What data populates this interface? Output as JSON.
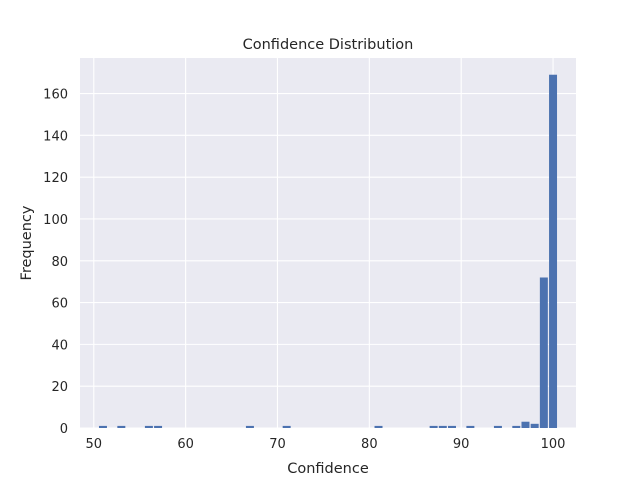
{
  "chart_data": {
    "type": "bar",
    "title": "Confidence Distribution",
    "xlabel": "Confidence",
    "ylabel": "Frequency",
    "xlim": [
      48.5,
      102.5
    ],
    "ylim": [
      0,
      177
    ],
    "xticks": [
      50,
      60,
      70,
      80,
      90,
      100
    ],
    "yticks": [
      0,
      20,
      40,
      60,
      80,
      100,
      120,
      140,
      160
    ],
    "grid": true,
    "bar_color": "#4c72b0",
    "background_color": "#eaeaf2",
    "bin_width": 1,
    "bins": [
      {
        "x": 51,
        "value": 1
      },
      {
        "x": 53,
        "value": 1
      },
      {
        "x": 56,
        "value": 1
      },
      {
        "x": 57,
        "value": 1
      },
      {
        "x": 67,
        "value": 1
      },
      {
        "x": 71,
        "value": 1
      },
      {
        "x": 81,
        "value": 1
      },
      {
        "x": 87,
        "value": 1
      },
      {
        "x": 88,
        "value": 1
      },
      {
        "x": 89,
        "value": 1
      },
      {
        "x": 91,
        "value": 1
      },
      {
        "x": 94,
        "value": 1
      },
      {
        "x": 96,
        "value": 1
      },
      {
        "x": 97,
        "value": 3
      },
      {
        "x": 98,
        "value": 2
      },
      {
        "x": 99,
        "value": 72
      },
      {
        "x": 100,
        "value": 169
      }
    ]
  }
}
